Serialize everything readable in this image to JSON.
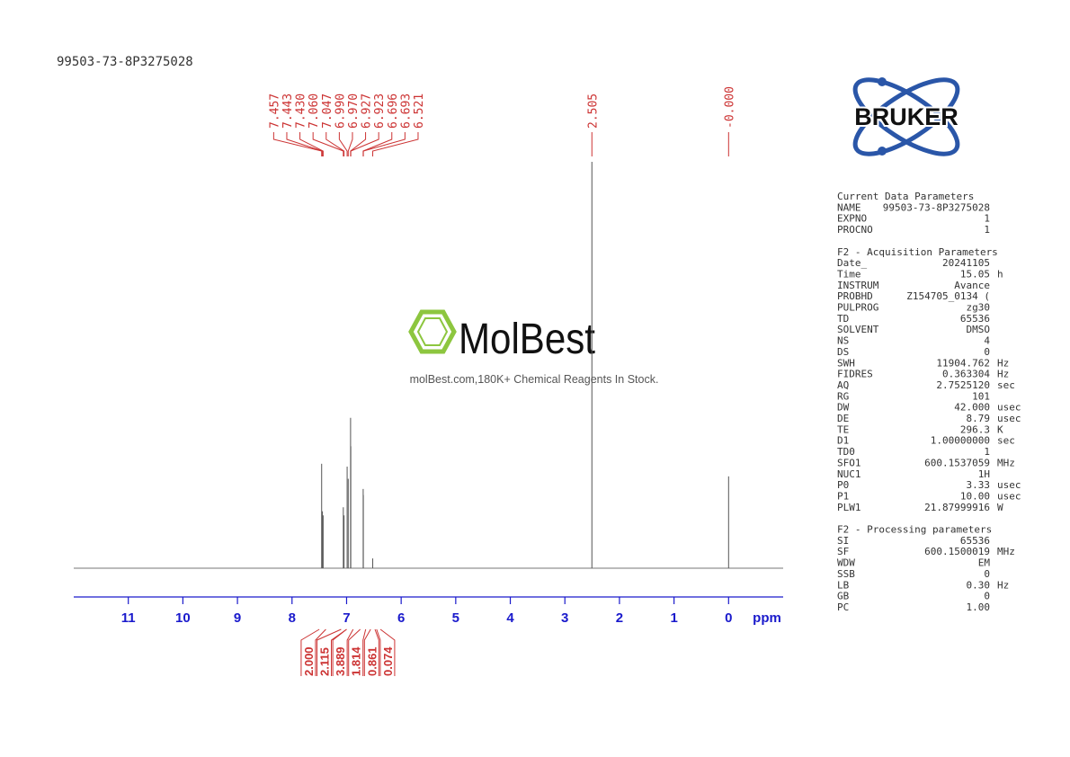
{
  "header": {
    "sample": "99503-73-8P3275028"
  },
  "chart_data": {
    "type": "spectrum",
    "xlabel": "ppm",
    "xlim": [
      12,
      -1
    ],
    "xticks": [
      11,
      10,
      9,
      8,
      7,
      6,
      5,
      4,
      3,
      2,
      1,
      0
    ],
    "color": "#555555",
    "label_color": "#cc3333",
    "peaks": {
      "shifts": [
        7.457,
        7.443,
        {
          "value": 7.43,
          "label": "7.430"
        },
        {
          "value": 7.06,
          "label": "7.060"
        },
        7.047,
        {
          "value": 6.99,
          "label": "6.990"
        },
        {
          "value": 6.97,
          "label": "6.970"
        },
        6.927,
        6.923,
        6.696,
        6.693,
        6.521,
        2.505,
        {
          "value": 0,
          "label": "-0.000"
        }
      ],
      "intensities": [
        25.7,
        14,
        13,
        15,
        13,
        25,
        22,
        37,
        30,
        19.5,
        18,
        2.4,
        100,
        22.6
      ]
    },
    "integrals": {
      "values": [
        {
          "value": 2,
          "label": "2.000"
        },
        2.115,
        3.889,
        1.814,
        0.861,
        0.074
      ],
      "ranges": [
        [
          7.5,
          7.38
        ],
        [
          7.1,
          7.0
        ],
        [
          7.0,
          6.88
        ],
        [
          6.75,
          6.65
        ],
        [
          6.56,
          6.48
        ],
        [
          6.45,
          6.38
        ]
      ]
    }
  },
  "logo": {
    "brand": "BRUKER"
  },
  "watermark": {
    "brand": "MolBest",
    "tagline": "molBest.com,180K+ Chemical Reagents In Stock."
  },
  "parameters": [
    {
      "title": "Current Data Parameters",
      "rows": [
        [
          "NAME",
          "99503-73-8P3275028"
        ],
        [
          "EXPNO",
          "1"
        ],
        [
          "PROCNO",
          "1"
        ]
      ]
    },
    {
      "title": "F2 - Acquisition Parameters",
      "rows": [
        [
          "Date_",
          "20241105"
        ],
        [
          "Time",
          "15.05",
          "h"
        ],
        [
          "INSTRUM",
          "Avance"
        ],
        [
          "PROBHD",
          "Z154705_0134 ("
        ],
        [
          "PULPROG",
          "zg30"
        ],
        [
          "TD",
          "65536"
        ],
        [
          "SOLVENT",
          "DMSO"
        ],
        [
          "NS",
          "4"
        ],
        [
          "DS",
          "0"
        ],
        [
          "SWH",
          "11904.762",
          "Hz"
        ],
        [
          "FIDRES",
          "0.363304",
          "Hz"
        ],
        [
          "AQ",
          "2.7525120",
          "sec"
        ],
        [
          "RG",
          "101"
        ],
        [
          "DW",
          "42.000",
          "usec"
        ],
        [
          "DE",
          "8.79",
          "usec"
        ],
        [
          "TE",
          "296.3",
          "K"
        ],
        [
          "D1",
          "1.00000000",
          "sec"
        ],
        [
          "TD0",
          "1"
        ],
        [
          "SFO1",
          "600.1537059",
          "MHz"
        ],
        [
          "NUC1",
          "1H"
        ],
        [
          "P0",
          "3.33",
          "usec"
        ],
        [
          "P1",
          "10.00",
          "usec"
        ],
        [
          "PLW1",
          "21.87999916",
          "W"
        ]
      ]
    },
    {
      "title": "F2 - Processing parameters",
      "rows": [
        [
          "SI",
          "65536"
        ],
        [
          "SF",
          "600.1500019",
          "MHz"
        ],
        [
          "WDW",
          "EM"
        ],
        [
          "SSB",
          "0"
        ],
        [
          "LB",
          "0.30",
          "Hz"
        ],
        [
          "GB",
          "0"
        ],
        [
          "PC",
          "1.00"
        ]
      ]
    }
  ]
}
